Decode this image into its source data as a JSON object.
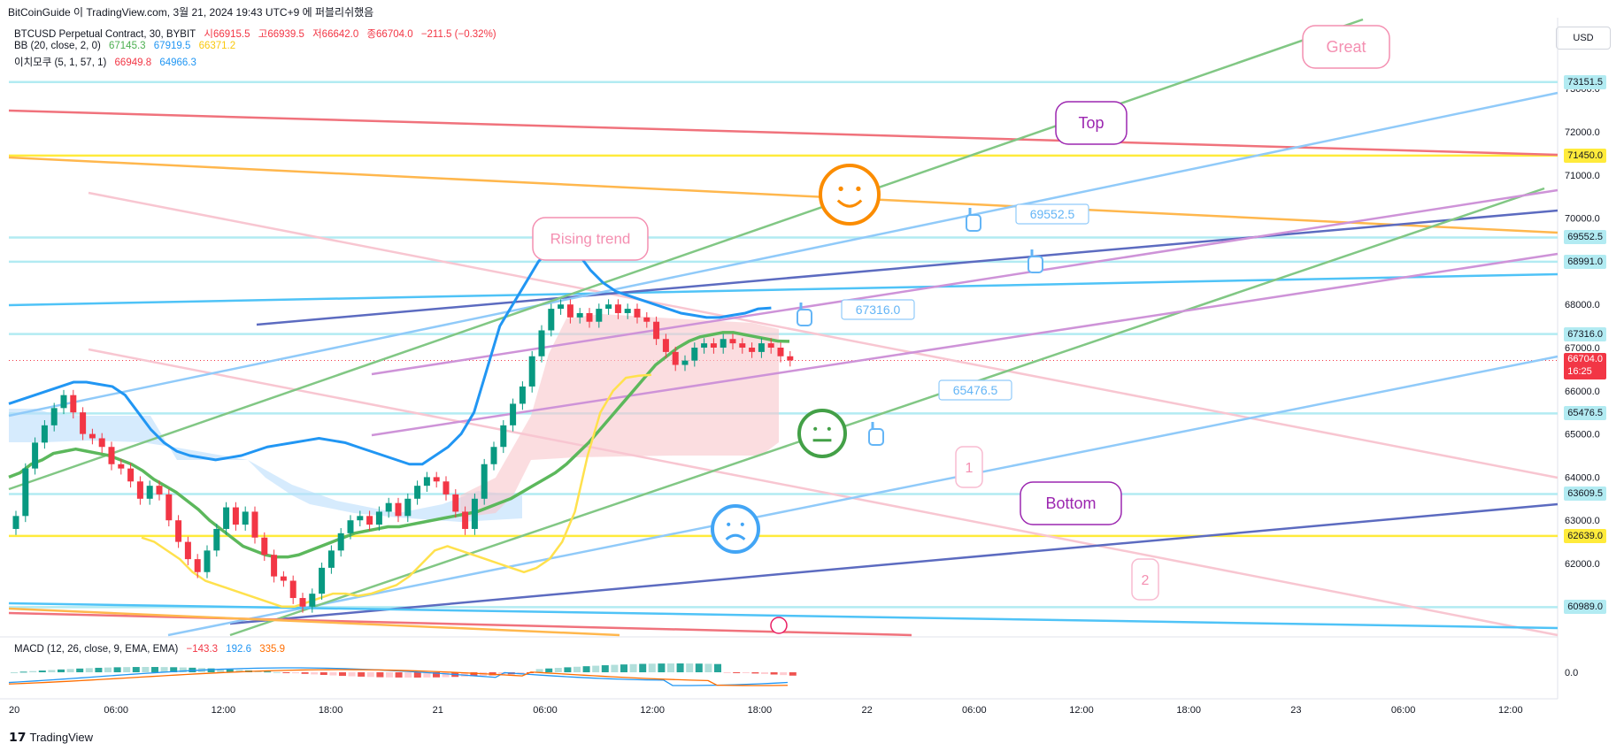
{
  "caption": "BitCoinGuide 이 TradingView.com, 3월 21, 2024 19:43 UTC+9 에 퍼블리쉬했음",
  "legend": {
    "symbol_line": {
      "name": "BTCUSD Perpetual Contract, 30, BYBIT",
      "o": "시66915.5",
      "h": "고66939.5",
      "l": "저66642.0",
      "c": "종66704.0",
      "chg": "−211.5 (−0.32%)"
    },
    "bb_line": {
      "name": "BB (20, close, 2, 0)",
      "basis": "67145.3",
      "upper": "67919.5",
      "lower": "66371.2"
    },
    "ichi_line": {
      "name": "이치모쿠 (5, 1, 57, 1)",
      "a": "66949.8",
      "b": "64966.3"
    },
    "macd_line": {
      "name": "MACD (12, 26, close, 9, EMA, EMA)",
      "hist": "−143.3",
      "macd": "192.6",
      "signal": "335.9"
    }
  },
  "currency": "USD",
  "brand": "TradingView",
  "colors": {
    "up": "#089981",
    "down": "#f23645",
    "bb_basis": "#5cb85c",
    "bb_upper": "#2196f3",
    "bb_lower": "#ffe14d",
    "hline": "#b2ebf2",
    "current_tag": "#f23645"
  },
  "price_tags": [
    {
      "label": "73151.5",
      "value": 73151.5,
      "bg": "#b2ebf2"
    },
    {
      "label": "71450.0",
      "value": 71450.0,
      "bg": "#ffeb3b"
    },
    {
      "label": "69552.5",
      "value": 69552.5,
      "bg": "#b2ebf2"
    },
    {
      "label": "68991.0",
      "value": 68991.0,
      "bg": "#b2ebf2"
    },
    {
      "label": "67316.0",
      "value": 67316.0,
      "bg": "#b2ebf2"
    },
    {
      "label": "65476.5",
      "value": 65476.5,
      "bg": "#b2ebf2"
    },
    {
      "label": "63609.5",
      "value": 63609.5,
      "bg": "#b2ebf2"
    },
    {
      "label": "62639.0",
      "value": 62639.0,
      "bg": "#ffeb3b"
    },
    {
      "label": "60989.0",
      "value": 60989.0,
      "bg": "#b2ebf2"
    }
  ],
  "current_price": {
    "label": "66704.0",
    "time": "16:25",
    "value": 66704.0
  },
  "annotations": {
    "rising_trend": "Rising trend",
    "top": "Top",
    "bottom": "Bottom",
    "great": "Great",
    "callout_69552": "69552.5",
    "callout_67316": "67316.0",
    "callout_65476": "65476.5",
    "marker_1": "1",
    "marker_2": "2"
  },
  "chart_data": {
    "type": "candlestick",
    "ylim": [
      60500,
      73500
    ],
    "y_ticks": [
      {
        "label": "73000.0",
        "value": 73000
      },
      {
        "label": "72000.0",
        "value": 72000
      },
      {
        "label": "71000.0",
        "value": 71000
      },
      {
        "label": "70000.0",
        "value": 70000
      },
      {
        "label": "68000.0",
        "value": 68000
      },
      {
        "label": "67000.0",
        "value": 67000
      },
      {
        "label": "66000.0",
        "value": 66000
      },
      {
        "label": "65000.0",
        "value": 65000
      },
      {
        "label": "64000.0",
        "value": 64000
      },
      {
        "label": "63000.0",
        "value": 63000
      },
      {
        "label": "62000.0",
        "value": 62000
      }
    ],
    "x_ticks": [
      {
        "label": "20",
        "bar": 0
      },
      {
        "label": "06:00",
        "bar": 12
      },
      {
        "label": "12:00",
        "bar": 24
      },
      {
        "label": "18:00",
        "bar": 36
      },
      {
        "label": "21",
        "bar": 48
      },
      {
        "label": "06:00",
        "bar": 60
      },
      {
        "label": "12:00",
        "bar": 72
      },
      {
        "label": "18:00",
        "bar": 84
      },
      {
        "label": "22",
        "bar": 96
      },
      {
        "label": "06:00",
        "bar": 108
      },
      {
        "label": "12:00",
        "bar": 120
      },
      {
        "label": "18:00",
        "bar": 132
      },
      {
        "label": "23",
        "bar": 144
      },
      {
        "label": "06:00",
        "bar": 156
      },
      {
        "label": "12:00",
        "bar": 168
      }
    ],
    "bar_span": 176,
    "closes": [
      63100,
      64200,
      64800,
      65200,
      65600,
      65900,
      65500,
      65000,
      64900,
      64700,
      64300,
      64200,
      63900,
      63500,
      63800,
      63600,
      63000,
      62500,
      62100,
      61800,
      62300,
      62800,
      63300,
      62900,
      63200,
      62600,
      62200,
      61700,
      61600,
      61200,
      61000,
      61300,
      61900,
      62300,
      62700,
      63000,
      63100,
      62900,
      63200,
      63400,
      63100,
      63500,
      63800,
      64000,
      63900,
      63600,
      63200,
      62800,
      63500,
      64300,
      64700,
      65200,
      65700,
      66100,
      66800,
      67400,
      67900,
      68000,
      67700,
      67800,
      67600,
      67900,
      68000,
      67800,
      67900,
      67700,
      67600,
      67200,
      66900,
      66600,
      66700,
      67000,
      67100,
      67000,
      67200,
      67100,
      67000,
      66900,
      67100,
      67000,
      66800,
      66704
    ],
    "bb_basis": [
      64000,
      64100,
      64300,
      64400,
      64550,
      64600,
      64650,
      64600,
      64550,
      64500,
      64400,
      64300,
      64150,
      63950,
      63800,
      63650,
      63450,
      63250,
      63000,
      62800,
      62600,
      62400,
      62300,
      62200,
      62150,
      62150,
      62200,
      62300,
      62400,
      62500,
      62600,
      62700,
      62750,
      62800,
      62850,
      62850,
      62900,
      62950,
      63000,
      63050,
      63100,
      63150,
      63200,
      63300,
      63400,
      63500,
      63650,
      63800,
      63950,
      64100,
      64300,
      64550,
      64800,
      65100,
      65400,
      65700,
      66000,
      66300,
      66600,
      66800,
      67000,
      67150,
      67250,
      67300,
      67350,
      67350,
      67300,
      67250,
      67200,
      67150,
      67145
    ],
    "bb_upper": [
      65700,
      65800,
      65900,
      66000,
      66100,
      66200,
      66200,
      66150,
      66100,
      65900,
      65500,
      65100,
      64800,
      64600,
      64500,
      64450,
      64400,
      64450,
      64500,
      64600,
      64700,
      64750,
      64800,
      64850,
      64900,
      64850,
      64800,
      64700,
      64600,
      64500,
      64400,
      64300,
      64300,
      64500,
      64700,
      65000,
      65500,
      66500,
      67500,
      68000,
      68500,
      69000,
      69300,
      69400,
      69200,
      68800,
      68500,
      68300,
      68200,
      68100,
      68000,
      67900,
      67800,
      67750,
      67700,
      67700,
      67750,
      67800,
      67900,
      67919
    ],
    "bb_lower": [
      62600,
      62500,
      62300,
      62100,
      61800,
      61600,
      61500,
      61400,
      61300,
      61200,
      61100,
      61000,
      61000,
      61100,
      61200,
      61300,
      61300,
      61250,
      61300,
      61400,
      61500,
      61700,
      62000,
      62300,
      62400,
      62300,
      62200,
      62100,
      62000,
      61900,
      61800,
      61900,
      62100,
      62500,
      63200,
      64500,
      65500,
      66000,
      66300,
      66350,
      66371
    ]
  }
}
